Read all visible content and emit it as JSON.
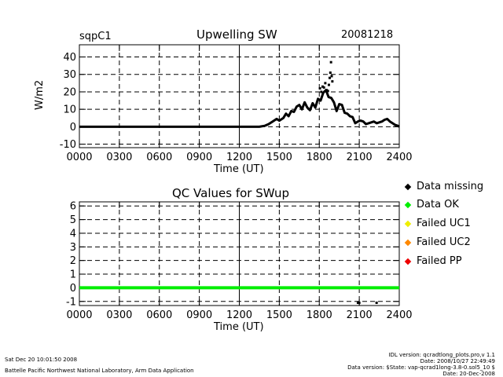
{
  "header": {
    "site": "sqpC1",
    "date": "20081218"
  },
  "colors": {
    "missing": "#000000",
    "ok": "#00ee00",
    "uc1": "#eeee00",
    "uc2": "#ff8800",
    "pp": "#ee0000"
  },
  "chart_data": [
    {
      "type": "line",
      "title": "Upwelling SW",
      "xlabel": "Time (UT)",
      "ylabel": "W/m2",
      "xlim": [
        0,
        24
      ],
      "ylim": [
        -12,
        47
      ],
      "xticks": [
        0,
        3,
        6,
        9,
        12,
        15,
        18,
        21,
        24
      ],
      "xtick_labels": [
        "0000",
        "0300",
        "0600",
        "0900",
        "1200",
        "1500",
        "1800",
        "2100",
        "2400"
      ],
      "yticks": [
        -10,
        0,
        10,
        20,
        30,
        40
      ],
      "ytick_labels": [
        "-10",
        "0",
        "10",
        "20",
        "30",
        "40"
      ],
      "grid": true,
      "series": [
        {
          "x": [
            0,
            1,
            2,
            3,
            4,
            5,
            6,
            7,
            8,
            9,
            10,
            11,
            12,
            13,
            13.5,
            13.9,
            14.2,
            14.5,
            14.8,
            15.0,
            15.3,
            15.5,
            15.7,
            15.9,
            16.1,
            16.3,
            16.5,
            16.7,
            16.9,
            17.1,
            17.3,
            17.5,
            17.7,
            17.9,
            18.1,
            18.3,
            18.5,
            18.7,
            18.9,
            19.1,
            19.3,
            19.5,
            19.7,
            19.9,
            20.1,
            20.3,
            20.5,
            20.7,
            20.9,
            21.1,
            21.3,
            21.5,
            21.7,
            21.9,
            22.1,
            22.3,
            22.5,
            22.7,
            22.9,
            23.1,
            23.3,
            23.5,
            23.7,
            23.9,
            24
          ],
          "y": [
            0,
            0,
            0,
            0,
            0,
            0,
            0,
            0,
            0,
            0,
            0,
            0,
            0,
            0,
            0,
            0.5,
            1.5,
            3.0,
            4.5,
            3.5,
            5.0,
            7.5,
            6.0,
            9.0,
            8.5,
            11.5,
            12.5,
            10.0,
            14.0,
            11.0,
            9.5,
            13.5,
            11.0,
            16.0,
            15.0,
            19.5,
            21.0,
            17.0,
            16.5,
            14.0,
            9.0,
            13.0,
            12.5,
            8.0,
            7.5,
            6.0,
            5.5,
            2.0,
            3.0,
            3.5,
            3.0,
            1.5,
            2.0,
            2.5,
            3.0,
            2.0,
            2.5,
            3.0,
            4.0,
            4.5,
            3.0,
            2.0,
            1.0,
            0.5,
            0
          ]
        }
      ],
      "points": {
        "x": [
          18.05,
          18.15,
          18.25,
          18.35,
          18.45,
          18.55,
          18.65,
          18.72,
          18.78,
          18.83,
          18.88,
          18.93,
          18.98
        ],
        "y": [
          22,
          20,
          23,
          22.5,
          25,
          21,
          20.5,
          24,
          28,
          31,
          37,
          29,
          26
        ]
      }
    },
    {
      "type": "line",
      "title": "QC Values for SWup",
      "xlabel": "Time (UT)",
      "xlim": [
        0,
        24
      ],
      "ylim": [
        -1.3,
        6.3
      ],
      "xticks": [
        0,
        3,
        6,
        9,
        12,
        15,
        18,
        21,
        24
      ],
      "xtick_labels": [
        "0000",
        "0300",
        "0600",
        "0900",
        "1200",
        "1500",
        "1800",
        "2100",
        "2400"
      ],
      "yticks": [
        -1,
        0,
        1,
        2,
        3,
        4,
        5,
        6
      ],
      "ytick_labels": [
        "-1",
        "0",
        "1",
        "2",
        "3",
        "4",
        "5",
        "6"
      ],
      "grid": true,
      "series": [
        {
          "x": [
            0,
            24
          ],
          "y": [
            0,
            0
          ]
        }
      ],
      "points": {
        "x": [
          20.9,
          21.0,
          22.3
        ],
        "y": [
          -1.1,
          -1.1,
          -1.1
        ]
      }
    }
  ],
  "legend": [
    {
      "label": "Data missing",
      "color": "#000000"
    },
    {
      "label": "Data OK",
      "color": "#00ee00"
    },
    {
      "label": "Failed UC1",
      "color": "#eeee00"
    },
    {
      "label": "Failed UC2",
      "color": "#ff8800"
    },
    {
      "label": "Failed PP",
      "color": "#ee0000"
    }
  ],
  "footer": {
    "timestamp": "Sat Dec 20 10:01:50 2008",
    "lab": "Battelle Pacific Northwest National Laboratory, Arm Data Application",
    "idl_version": "IDL version: qcradtlong_plots.pro,v 1.1",
    "idl_date": "Date: 2008/10/27 22:49:49",
    "data_version": "Data version: $State: vap-qcrad1long-3.8-0.sol5_10 $",
    "data_date": "Date: 20-Dec-2008"
  }
}
